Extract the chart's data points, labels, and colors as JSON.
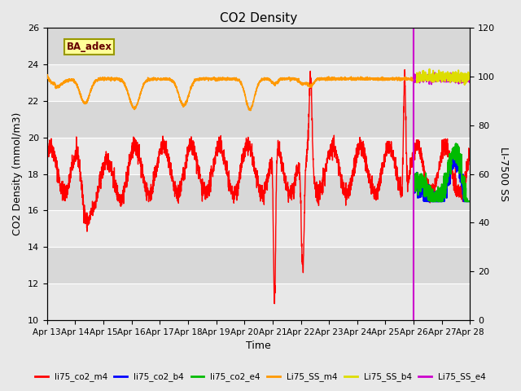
{
  "title": "CO2 Density",
  "xlabel": "Time",
  "ylabel_left": "CO2 Density (mmol/m3)",
  "ylabel_right": "LI-7500 SS",
  "ylim_left": [
    10,
    26
  ],
  "ylim_right": [
    0,
    120
  ],
  "yticks_left": [
    10,
    12,
    14,
    16,
    18,
    20,
    22,
    24,
    26
  ],
  "yticks_right": [
    0,
    20,
    40,
    60,
    80,
    100,
    120
  ],
  "xtick_labels": [
    "Apr 13",
    "Apr 14",
    "Apr 15",
    "Apr 16",
    "Apr 17",
    "Apr 18",
    "Apr 19",
    "Apr 20",
    "Apr 21",
    "Apr 22",
    "Apr 23",
    "Apr 24",
    "Apr 25",
    "Apr 26",
    "Apr 27",
    "Apr 28"
  ],
  "plot_bg_light": "#e8e8e8",
  "plot_bg_dark": "#d8d8d8",
  "grid_color": "#ffffff",
  "ba_adex_color": "#ffff99",
  "ba_adex_border": "#999900",
  "ba_adex_text": "#660000",
  "legend_entries": [
    {
      "label": "li75_co2_m4",
      "color": "#ff0000",
      "lw": 1.2
    },
    {
      "label": "li75_co2_b4",
      "color": "#0000ff",
      "lw": 1.5
    },
    {
      "label": "li75_co2_e4",
      "color": "#00bb00",
      "lw": 1.5
    },
    {
      "label": "Li75_SS_m4",
      "color": "#ff9900",
      "lw": 1.5
    },
    {
      "label": "Li75_SS_b4",
      "color": "#dddd00",
      "lw": 1.5
    },
    {
      "label": "Li75_SS_e4",
      "color": "#cc00cc",
      "lw": 1.5
    }
  ],
  "vline_color": "#cc00cc",
  "vline_lw": 1.5
}
